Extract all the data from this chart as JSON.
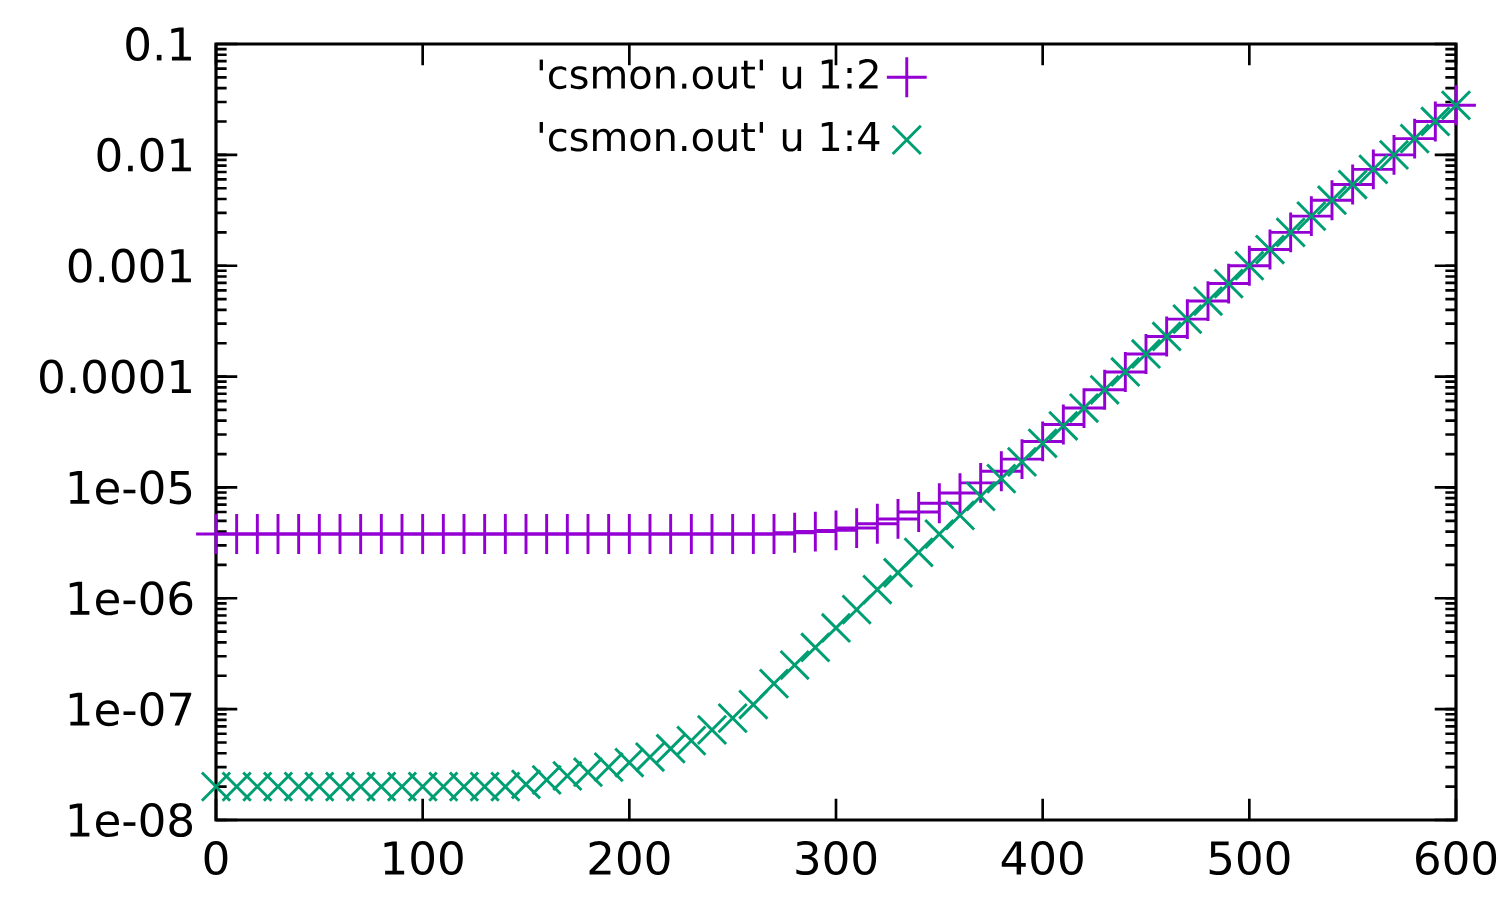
{
  "chart_data": {
    "type": "scatter",
    "log": "y",
    "grid": false,
    "legend": "top left",
    "xlim": [
      0,
      600
    ],
    "xticks": [
      0,
      100,
      200,
      300,
      400,
      500,
      600
    ],
    "ylim": [
      1e-08,
      0.1
    ],
    "yticks": [
      {
        "value": 1e-08,
        "label": "1e-08"
      },
      {
        "value": 1e-07,
        "label": "1e-07"
      },
      {
        "value": 1e-06,
        "label": "1e-06"
      },
      {
        "value": 1e-05,
        "label": "1e-05"
      },
      {
        "value": 0.0001,
        "label": "0.0001"
      },
      {
        "value": 0.001,
        "label": "0.001"
      },
      {
        "value": 0.01,
        "label": "0.01"
      },
      {
        "value": 0.1,
        "label": "0.1"
      }
    ],
    "x": [
      0,
      10,
      20,
      30,
      40,
      50,
      60,
      70,
      80,
      90,
      100,
      110,
      120,
      130,
      140,
      150,
      160,
      170,
      180,
      190,
      200,
      210,
      220,
      230,
      240,
      250,
      260,
      270,
      280,
      290,
      300,
      310,
      320,
      330,
      340,
      350,
      360,
      370,
      380,
      390,
      400,
      410,
      420,
      430,
      440,
      450,
      460,
      470,
      480,
      490,
      500,
      510,
      520,
      530,
      540,
      550,
      560,
      570,
      580,
      590,
      600
    ],
    "series": [
      {
        "name": "'csmon.out' u 1:2",
        "color": "#9400d3",
        "marker": "plus",
        "values": [
          3.8e-06,
          3.8e-06,
          3.8e-06,
          3.8e-06,
          3.8e-06,
          3.8e-06,
          3.8e-06,
          3.8e-06,
          3.8e-06,
          3.8e-06,
          3.8e-06,
          3.8e-06,
          3.8e-06,
          3.8e-06,
          3.8e-06,
          3.8e-06,
          3.8e-06,
          3.8e-06,
          3.8e-06,
          3.8e-06,
          3.8e-06,
          3.8e-06,
          3.8e-06,
          3.8e-06,
          3.8e-06,
          3.8e-06,
          3.8e-06,
          3.8e-06,
          3.9e-06,
          4e-06,
          4.1e-06,
          4.3e-06,
          4.7e-06,
          5.2e-06,
          6e-06,
          7.2e-06,
          8.9e-06,
          1.1e-05,
          1.4e-05,
          1.8e-05,
          2.6e-05,
          3.7e-05,
          5.2e-05,
          7.6e-05,
          0.00011,
          0.00016,
          0.00023,
          0.00033,
          0.00048,
          0.00069,
          0.001,
          0.0014,
          0.002,
          0.0028,
          0.0039,
          0.0054,
          0.0074,
          0.01,
          0.014,
          0.02,
          0.028
        ]
      },
      {
        "name": "'csmon.out' u 1:4",
        "color": "#009e73",
        "marker": "cross",
        "values": [
          2e-08,
          2e-08,
          2e-08,
          2e-08,
          2e-08,
          2e-08,
          2e-08,
          2e-08,
          2e-08,
          2e-08,
          2e-08,
          2e-08,
          2e-08,
          2e-08,
          2e-08,
          2.1e-08,
          2.3e-08,
          2.5e-08,
          2.7e-08,
          3e-08,
          3.3e-08,
          3.7e-08,
          4.4e-08,
          5.2e-08,
          6.5e-08,
          8.3e-08,
          1.1e-07,
          1.7e-07,
          2.5e-07,
          3.6e-07,
          5.4e-07,
          7.9e-07,
          1.2e-06,
          1.7e-06,
          2.6e-06,
          3.8e-06,
          5.6e-06,
          8.3e-06,
          1.2e-05,
          1.7e-05,
          2.5e-05,
          3.6e-05,
          5.2e-05,
          7.6e-05,
          0.00011,
          0.00016,
          0.00023,
          0.00033,
          0.00048,
          0.00069,
          0.001,
          0.0014,
          0.002,
          0.0028,
          0.0039,
          0.0054,
          0.0074,
          0.01,
          0.014,
          0.02,
          0.028
        ]
      }
    ]
  }
}
